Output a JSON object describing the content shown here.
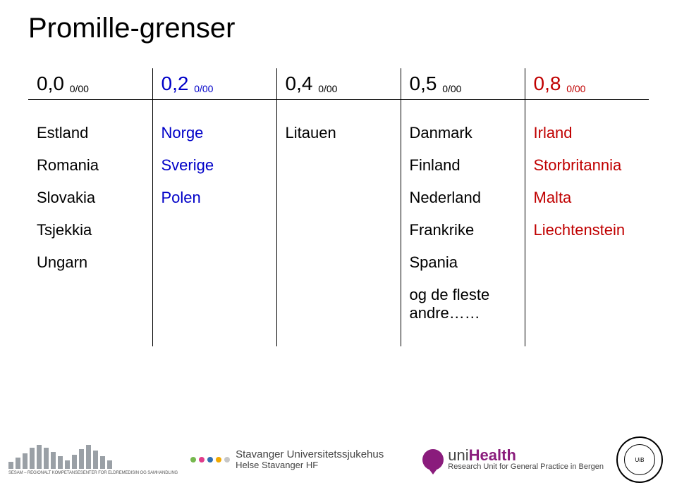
{
  "title": "Promille-grenser",
  "columns": [
    {
      "value": "0,0",
      "sub": "0/00",
      "color": "#000000"
    },
    {
      "value": "0,2",
      "sub": "0/00",
      "color": "#0000c8"
    },
    {
      "value": "0,4",
      "sub": "0/00",
      "color": "#000000"
    },
    {
      "value": "0,5",
      "sub": "0/00",
      "color": "#000000"
    },
    {
      "value": "0,8",
      "sub": "0/00",
      "color": "#c00000"
    }
  ],
  "rows": [
    {
      "c0": "Estland",
      "c1": "Norge",
      "c1_color": "#0000c8",
      "c2": "Litauen",
      "c3": "Danmark",
      "c4": "Irland",
      "c4_color": "#c00000"
    },
    {
      "c0": "Romania",
      "c1": "Sverige",
      "c1_color": "#0000c8",
      "c2": "",
      "c3": "Finland",
      "c4": "Storbritannia",
      "c4_color": "#c00000"
    },
    {
      "c0": "Slovakia",
      "c1": "Polen",
      "c1_color": "#0000c8",
      "c2": "",
      "c3": "Nederland",
      "c4": "Malta",
      "c4_color": "#c00000"
    },
    {
      "c0": "Tsjekkia",
      "c1": "",
      "c1_color": "#0000c8",
      "c2": "",
      "c3": "Frankrike",
      "c4": "Liechtenstein",
      "c4_color": "#c00000"
    },
    {
      "c0": "Ungarn",
      "c1": "",
      "c1_color": "#0000c8",
      "c2": "",
      "c3": "Spania",
      "c4": "",
      "c4_color": "#c00000"
    },
    {
      "c0": "",
      "c1": "",
      "c1_color": "#0000c8",
      "c2": "",
      "c3": "og de fleste andre……",
      "c4": "",
      "c4_color": "#c00000"
    }
  ],
  "footer": {
    "sesam_tag": "SESAM – REGIONALT KOMPETANSESENTER FOR ELDREMEDISIN OG SAMHANDLING",
    "sus_line1": "Stavanger Universitetssjukehus",
    "sus_line2": "Helse Stavanger HF",
    "uni_brand_a": "uni",
    "uni_brand_b": "Health",
    "uni_sub": "Research Unit for General Practice in Bergen",
    "uib": "UiB",
    "bubble_color": "#8a1c7c",
    "uni_a_color": "#444444",
    "uni_b_color": "#8a1c7c",
    "dot_colors": [
      "#76b84e",
      "#e03c8a",
      "#2f6fb3",
      "#f2a900",
      "#c7c7c7"
    ],
    "sesam_bar_heights": [
      10,
      16,
      22,
      30,
      34,
      30,
      24,
      18,
      12,
      20,
      28,
      34,
      26,
      18,
      12
    ]
  }
}
